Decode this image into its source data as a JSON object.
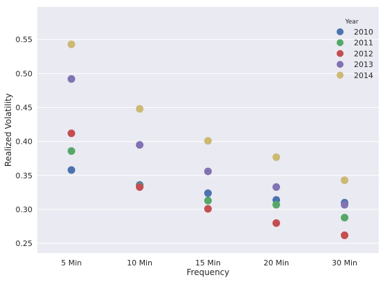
{
  "chart_data": {
    "type": "scatter",
    "xlabel": "Frequency",
    "ylabel": "Realized Volatility",
    "categories": [
      "5 Min",
      "10 Min",
      "15 Min",
      "20 Min",
      "30 Min"
    ],
    "ylim": [
      0.236,
      0.598
    ],
    "yticks": [
      "0.25",
      "0.30",
      "0.35",
      "0.40",
      "0.45",
      "0.50",
      "0.55"
    ],
    "grid": true,
    "legend": {
      "title": "Year",
      "position": "top-right"
    },
    "series": [
      {
        "name": "2010",
        "color": "#4c72b0",
        "values": [
          0.358,
          0.336,
          0.324,
          0.314,
          0.31
        ]
      },
      {
        "name": "2011",
        "color": "#55a868",
        "values": [
          0.386,
          0.334,
          0.313,
          0.307,
          0.288
        ]
      },
      {
        "name": "2012",
        "color": "#c44e52",
        "values": [
          0.412,
          0.333,
          0.301,
          0.28,
          0.262
        ]
      },
      {
        "name": "2013",
        "color": "#8172b2",
        "values": [
          0.492,
          0.395,
          0.356,
          0.333,
          0.307
        ]
      },
      {
        "name": "2014",
        "color": "#ccb974",
        "values": [
          0.543,
          0.448,
          0.401,
          0.377,
          0.343
        ]
      }
    ],
    "colors": {
      "plot_background": "#eaeaf2",
      "grid": "#ffffff"
    }
  }
}
